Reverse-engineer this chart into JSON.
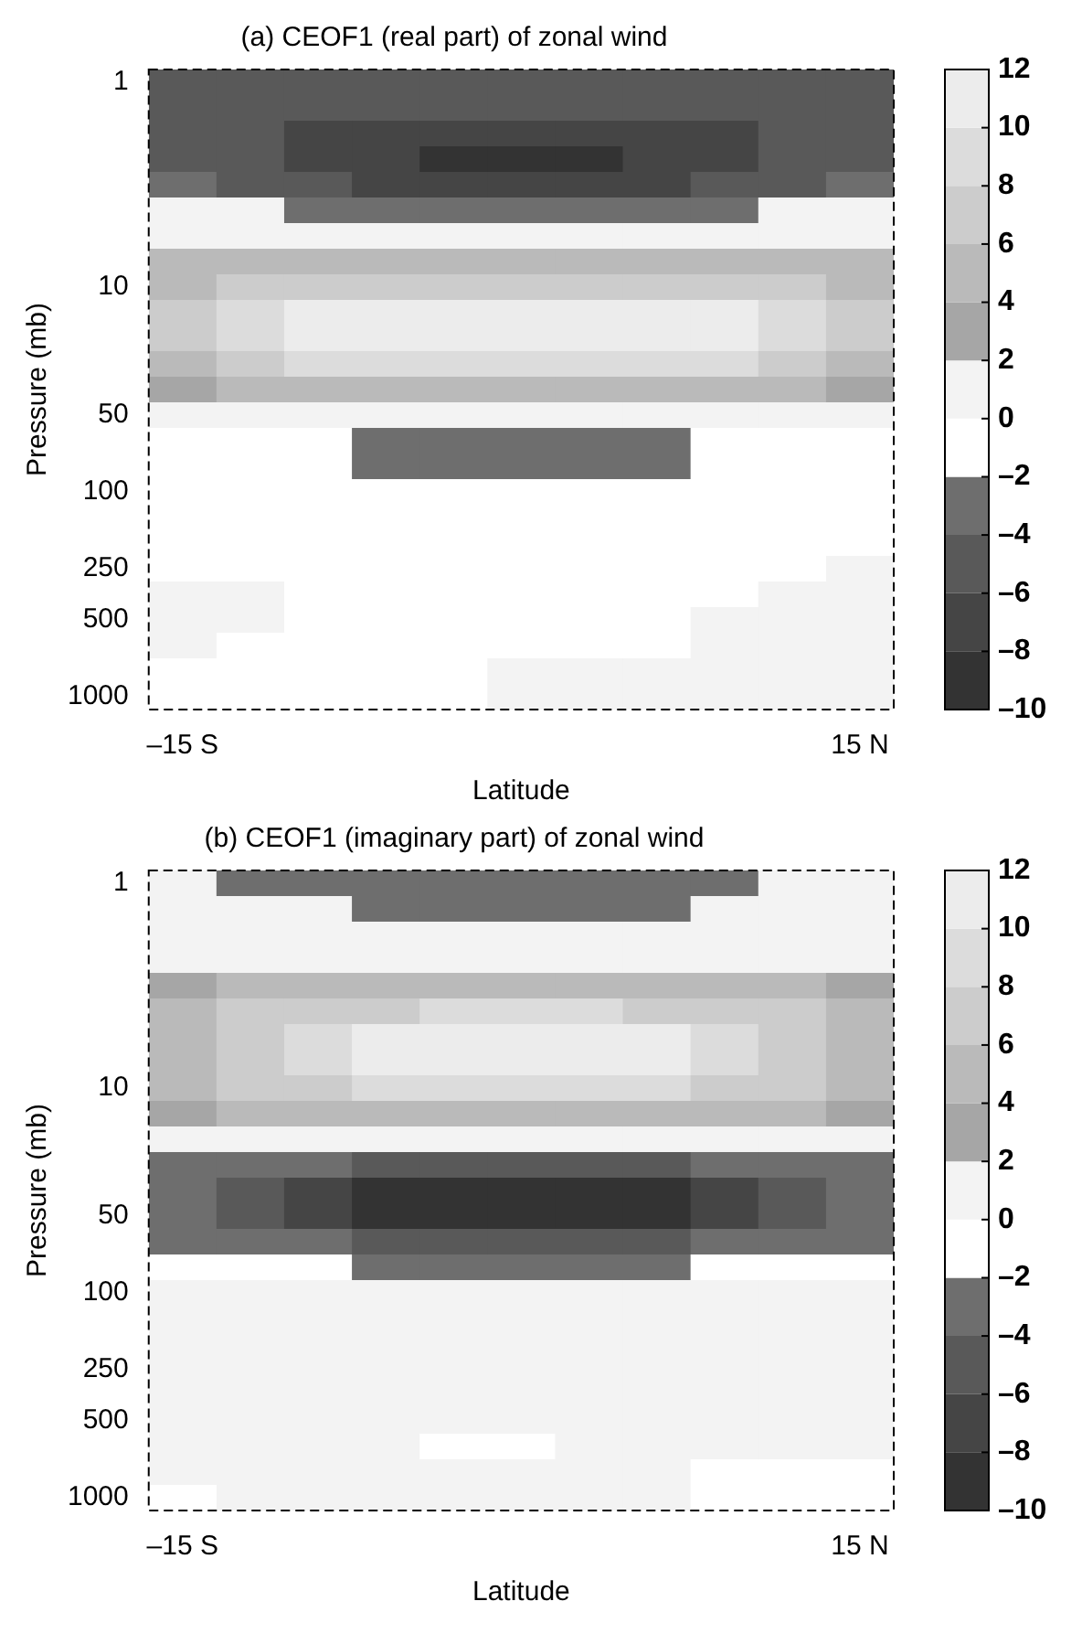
{
  "chart_data": [
    {
      "type": "heatmap",
      "title": "(a) CEOF1 (real part) of zonal wind",
      "xlabel": "Latitude",
      "ylabel": "Pressure (mb)",
      "categories": [
        "–15 S",
        null,
        null,
        null,
        null,
        null,
        null,
        null,
        null,
        null,
        "15 N"
      ],
      "y_categories": [
        "1",
        null,
        null,
        null,
        null,
        null,
        null,
        null,
        "10",
        null,
        null,
        null,
        null,
        "50",
        null,
        null,
        "100",
        null,
        null,
        "250",
        null,
        "500",
        null,
        null,
        "1000"
      ],
      "cells": [
        [
          -5,
          -5,
          -5,
          -5,
          -5,
          -5,
          -5,
          -5,
          -5,
          -5,
          -5
        ],
        [
          -5,
          -5,
          -5,
          -5,
          -5,
          -5,
          -5,
          -5,
          -5,
          -5,
          -5
        ],
        [
          -5,
          -5,
          -7,
          -7,
          -7,
          -7,
          -7,
          -7,
          -7,
          -5,
          -5
        ],
        [
          -5,
          -5,
          -7,
          -7,
          -9,
          -9,
          -9,
          -7,
          -7,
          -5,
          -5
        ],
        [
          -3,
          -5,
          -5,
          -7,
          -7,
          -7,
          -7,
          -7,
          -5,
          -5,
          -3
        ],
        [
          1,
          1,
          -3,
          -3,
          -3,
          -3,
          -3,
          -3,
          -3,
          1,
          1
        ],
        [
          1,
          1,
          1,
          1,
          1,
          1,
          1,
          1,
          1,
          1,
          1
        ],
        [
          5,
          5,
          5,
          5,
          5,
          5,
          5,
          5,
          5,
          5,
          5
        ],
        [
          5,
          7,
          7,
          7,
          7,
          7,
          7,
          7,
          7,
          7,
          5
        ],
        [
          7,
          9,
          11,
          11,
          11,
          11,
          11,
          11,
          11,
          9,
          7
        ],
        [
          7,
          9,
          11,
          11,
          11,
          11,
          11,
          11,
          11,
          9,
          7
        ],
        [
          5,
          7,
          9,
          9,
          9,
          9,
          9,
          9,
          9,
          7,
          5
        ],
        [
          3,
          5,
          5,
          5,
          5,
          5,
          5,
          5,
          5,
          5,
          3
        ],
        [
          1,
          1,
          1,
          1,
          1,
          1,
          1,
          1,
          1,
          1,
          1
        ],
        [
          -1,
          -1,
          -1,
          -3,
          -3,
          -3,
          -3,
          -3,
          -1,
          -1,
          -1
        ],
        [
          -1,
          -1,
          -1,
          -3,
          -3,
          -3,
          -3,
          -3,
          -1,
          -1,
          -1
        ],
        [
          -1,
          -1,
          -1,
          -1,
          -1,
          -1,
          -1,
          -1,
          -1,
          -1,
          -1
        ],
        [
          -1,
          -1,
          -1,
          -1,
          -1,
          -1,
          -1,
          -1,
          -1,
          -1,
          -1
        ],
        [
          -1,
          -1,
          -1,
          -1,
          -1,
          -1,
          -1,
          -1,
          -1,
          -1,
          -1
        ],
        [
          -1,
          -1,
          -1,
          -1,
          -1,
          -1,
          -1,
          -1,
          -1,
          -1,
          1
        ],
        [
          1,
          1,
          -1,
          -1,
          -1,
          -1,
          -1,
          -1,
          -1,
          1,
          1
        ],
        [
          1,
          1,
          -1,
          -1,
          -1,
          -1,
          -1,
          -1,
          1,
          1,
          1
        ],
        [
          1,
          -1,
          -1,
          -1,
          -1,
          -1,
          -1,
          -1,
          1,
          1,
          1
        ],
        [
          -1,
          -1,
          -1,
          -1,
          -1,
          1,
          1,
          1,
          1,
          1,
          1
        ],
        [
          -1,
          -1,
          -1,
          -1,
          -1,
          1,
          1,
          1,
          1,
          1,
          1
        ]
      ],
      "clim": [
        -10,
        12
      ],
      "cticks": [
        {
          "value": -10,
          "label": "–10"
        },
        {
          "value": -8,
          "label": "–8"
        },
        {
          "value": -6,
          "label": "–6"
        },
        {
          "value": -4,
          "label": "–4"
        },
        {
          "value": -2,
          "label": "–2"
        },
        0,
        2,
        4,
        6,
        8,
        10,
        12
      ]
    },
    {
      "type": "heatmap",
      "title": "(b) CEOF1 (imaginary part) of zonal wind",
      "xlabel": "Latitude",
      "ylabel": "Pressure (mb)",
      "categories": [
        "–15 S",
        null,
        null,
        null,
        null,
        null,
        null,
        null,
        null,
        null,
        "15 N"
      ],
      "y_categories": [
        "1",
        null,
        null,
        null,
        null,
        null,
        null,
        null,
        "10",
        null,
        null,
        null,
        null,
        "50",
        null,
        null,
        "100",
        null,
        null,
        "250",
        null,
        "500",
        null,
        null,
        "1000"
      ],
      "cells": [
        [
          1,
          -3,
          -3,
          -3,
          -3,
          -3,
          -3,
          -3,
          -3,
          1,
          1
        ],
        [
          1,
          1,
          1,
          -3,
          -3,
          -3,
          -3,
          -3,
          1,
          1,
          1
        ],
        [
          1,
          1,
          1,
          1,
          1,
          1,
          1,
          1,
          1,
          1,
          1
        ],
        [
          1,
          1,
          1,
          1,
          1,
          1,
          1,
          1,
          1,
          1,
          1
        ],
        [
          3,
          5,
          5,
          5,
          5,
          5,
          5,
          5,
          5,
          5,
          3
        ],
        [
          5,
          7,
          7,
          7,
          9,
          9,
          9,
          7,
          7,
          7,
          5
        ],
        [
          5,
          7,
          9,
          11,
          11,
          11,
          11,
          11,
          9,
          7,
          5
        ],
        [
          5,
          7,
          9,
          11,
          11,
          11,
          11,
          11,
          9,
          7,
          5
        ],
        [
          5,
          7,
          7,
          9,
          9,
          9,
          9,
          9,
          7,
          7,
          5
        ],
        [
          3,
          5,
          5,
          5,
          5,
          5,
          5,
          5,
          5,
          5,
          3
        ],
        [
          1,
          1,
          1,
          1,
          1,
          1,
          1,
          1,
          1,
          1,
          1
        ],
        [
          -3,
          -3,
          -3,
          -5,
          -5,
          -5,
          -5,
          -5,
          -3,
          -3,
          -3
        ],
        [
          -3,
          -5,
          -7,
          -9,
          -9,
          -9,
          -9,
          -9,
          -7,
          -5,
          -3
        ],
        [
          -3,
          -5,
          -7,
          -9,
          -9,
          -9,
          -9,
          -9,
          -7,
          -5,
          -3
        ],
        [
          -3,
          -3,
          -3,
          -5,
          -5,
          -5,
          -5,
          -5,
          -3,
          -3,
          -3
        ],
        [
          -1,
          -1,
          -1,
          -3,
          -3,
          -3,
          -3,
          -3,
          -1,
          -1,
          -1
        ],
        [
          1,
          1,
          1,
          1,
          1,
          1,
          1,
          1,
          1,
          1,
          1
        ],
        [
          1,
          1,
          1,
          1,
          1,
          1,
          1,
          1,
          1,
          1,
          1
        ],
        [
          1,
          1,
          1,
          1,
          1,
          1,
          1,
          1,
          1,
          1,
          1
        ],
        [
          1,
          1,
          1,
          1,
          1,
          1,
          1,
          1,
          1,
          1,
          1
        ],
        [
          1,
          1,
          1,
          1,
          1,
          1,
          1,
          1,
          1,
          1,
          1
        ],
        [
          1,
          1,
          1,
          1,
          1,
          1,
          1,
          1,
          1,
          1,
          1
        ],
        [
          1,
          1,
          1,
          1,
          -1,
          -1,
          1,
          1,
          1,
          1,
          1
        ],
        [
          1,
          1,
          1,
          1,
          1,
          1,
          1,
          1,
          -1,
          -1,
          -1
        ],
        [
          -1,
          1,
          1,
          1,
          1,
          1,
          1,
          1,
          -1,
          -1,
          -1
        ]
      ],
      "clim": [
        -10,
        12
      ],
      "cticks": [
        {
          "value": -10,
          "label": "–10"
        },
        {
          "value": -8,
          "label": "–8"
        },
        {
          "value": -6,
          "label": "–6"
        },
        {
          "value": -4,
          "label": "–4"
        },
        {
          "value": -2,
          "label": "–2"
        },
        0,
        2,
        4,
        6,
        8,
        10,
        12
      ]
    }
  ]
}
